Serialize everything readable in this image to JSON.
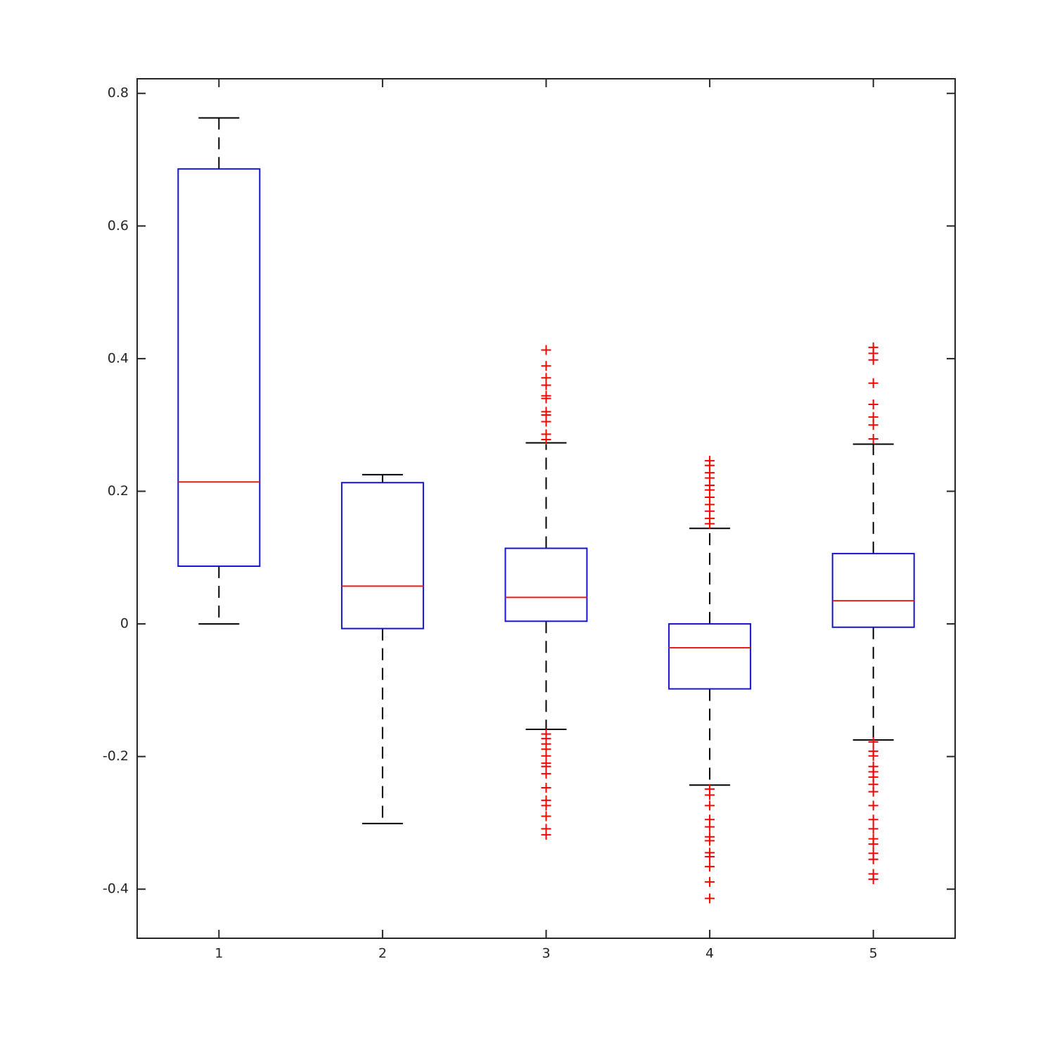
{
  "chart_data": {
    "type": "box",
    "categories": [
      "1",
      "2",
      "3",
      "4",
      "5"
    ],
    "box_color": "#1414d2",
    "median_color": "#e81c1c",
    "whisker_color": "#000000",
    "outlier_color": "#ff0000",
    "xlim": [
      0.5,
      5.5
    ],
    "ylim": [
      -0.474,
      0.822
    ],
    "yticks": [
      -0.4,
      -0.2,
      0,
      0.2,
      0.4,
      0.6,
      0.8
    ],
    "boxes": [
      {
        "whisker_low": 0,
        "q1": 0.087,
        "median": 0.214,
        "q3": 0.686,
        "whisker_high": 0.763,
        "outliers": []
      },
      {
        "whisker_low": -0.301,
        "q1": -0.007,
        "median": 0.057,
        "q3": 0.213,
        "whisker_high": 0.225,
        "outliers": []
      },
      {
        "whisker_low": -0.159,
        "q1": 0.004,
        "median": 0.04,
        "q3": 0.114,
        "whisker_high": 0.273,
        "outliers": [
          0.413,
          0.389,
          0.371,
          0.36,
          0.344,
          0.34,
          0.32,
          0.315,
          0.305,
          0.286,
          0.278,
          -0.166,
          -0.173,
          -0.181,
          -0.189,
          -0.199,
          -0.21,
          -0.215,
          -0.226,
          -0.247,
          -0.266,
          -0.274,
          -0.29,
          -0.309,
          -0.318
        ]
      },
      {
        "whisker_low": -0.243,
        "q1": -0.098,
        "median": -0.036,
        "q3": 0,
        "whisker_high": 0.144,
        "outliers": [
          0.246,
          0.239,
          0.228,
          0.22,
          0.209,
          0.202,
          0.191,
          0.18,
          0.17,
          0.159,
          0.151,
          -0.249,
          -0.258,
          -0.274,
          -0.295,
          -0.306,
          -0.321,
          -0.327,
          -0.345,
          -0.351,
          -0.366,
          -0.389,
          -0.414
        ]
      },
      {
        "whisker_low": -0.175,
        "q1": -0.005,
        "median": 0.035,
        "q3": 0.106,
        "whisker_high": 0.271,
        "outliers": [
          0.417,
          0.408,
          0.398,
          0.363,
          0.331,
          0.312,
          0.3,
          0.279,
          -0.178,
          -0.192,
          -0.199,
          -0.215,
          -0.223,
          -0.231,
          -0.242,
          -0.253,
          -0.274,
          -0.295,
          -0.309,
          -0.324,
          -0.332,
          -0.346,
          -0.355,
          -0.377,
          -0.385
        ]
      }
    ]
  }
}
